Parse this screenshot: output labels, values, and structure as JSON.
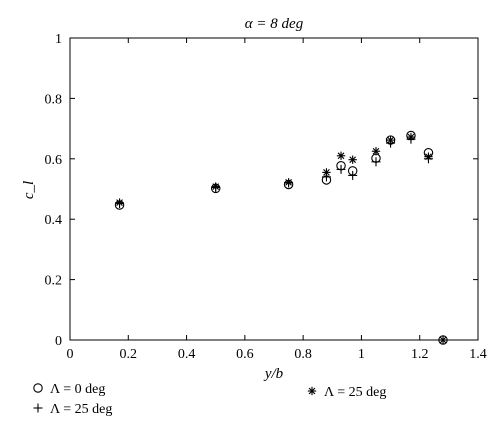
{
  "chart_data": {
    "type": "scatter",
    "title": "α = 8 deg",
    "xlabel": "y/b",
    "ylabel": "c_l",
    "xlim": [
      0,
      1.4
    ],
    "ylim": [
      0,
      1
    ],
    "xticks": [
      "0",
      "0.2",
      "0.4",
      "0.6",
      "0.8",
      "1",
      "1.2",
      "1.4"
    ],
    "yticks": [
      "0",
      "0.2",
      "0.4",
      "0.6",
      "0.8",
      "1"
    ],
    "grid": false,
    "legend_position": "below",
    "series": [
      {
        "name": "Λ = 0 deg",
        "marker": "circle",
        "points": [
          [
            0.17,
            0.447
          ],
          [
            0.5,
            0.502
          ],
          [
            0.75,
            0.515
          ],
          [
            0.88,
            0.53
          ],
          [
            0.93,
            0.577
          ],
          [
            0.97,
            0.56
          ],
          [
            1.05,
            0.602
          ],
          [
            1.1,
            0.662
          ],
          [
            1.17,
            0.677
          ],
          [
            1.23,
            0.62
          ],
          [
            1.28,
            0.0
          ]
        ]
      },
      {
        "name": "Λ = 25 deg",
        "marker": "plus",
        "points": [
          [
            0.17,
            0.452
          ],
          [
            0.5,
            0.505
          ],
          [
            0.75,
            0.52
          ],
          [
            0.88,
            0.54
          ],
          [
            0.93,
            0.565
          ],
          [
            0.97,
            0.545
          ],
          [
            1.05,
            0.59
          ],
          [
            1.1,
            0.652
          ],
          [
            1.17,
            0.665
          ],
          [
            1.23,
            0.6
          ],
          [
            1.28,
            0.0
          ]
        ]
      },
      {
        "name": "Λ = 25 deg",
        "marker": "asterisk",
        "points": [
          [
            0.17,
            0.455
          ],
          [
            0.5,
            0.508
          ],
          [
            0.75,
            0.522
          ],
          [
            0.88,
            0.555
          ],
          [
            0.93,
            0.61
          ],
          [
            0.97,
            0.597
          ],
          [
            1.05,
            0.625
          ],
          [
            1.1,
            0.662
          ],
          [
            1.17,
            0.672
          ],
          [
            1.23,
            0.607
          ],
          [
            1.28,
            0.0
          ]
        ]
      }
    ]
  }
}
